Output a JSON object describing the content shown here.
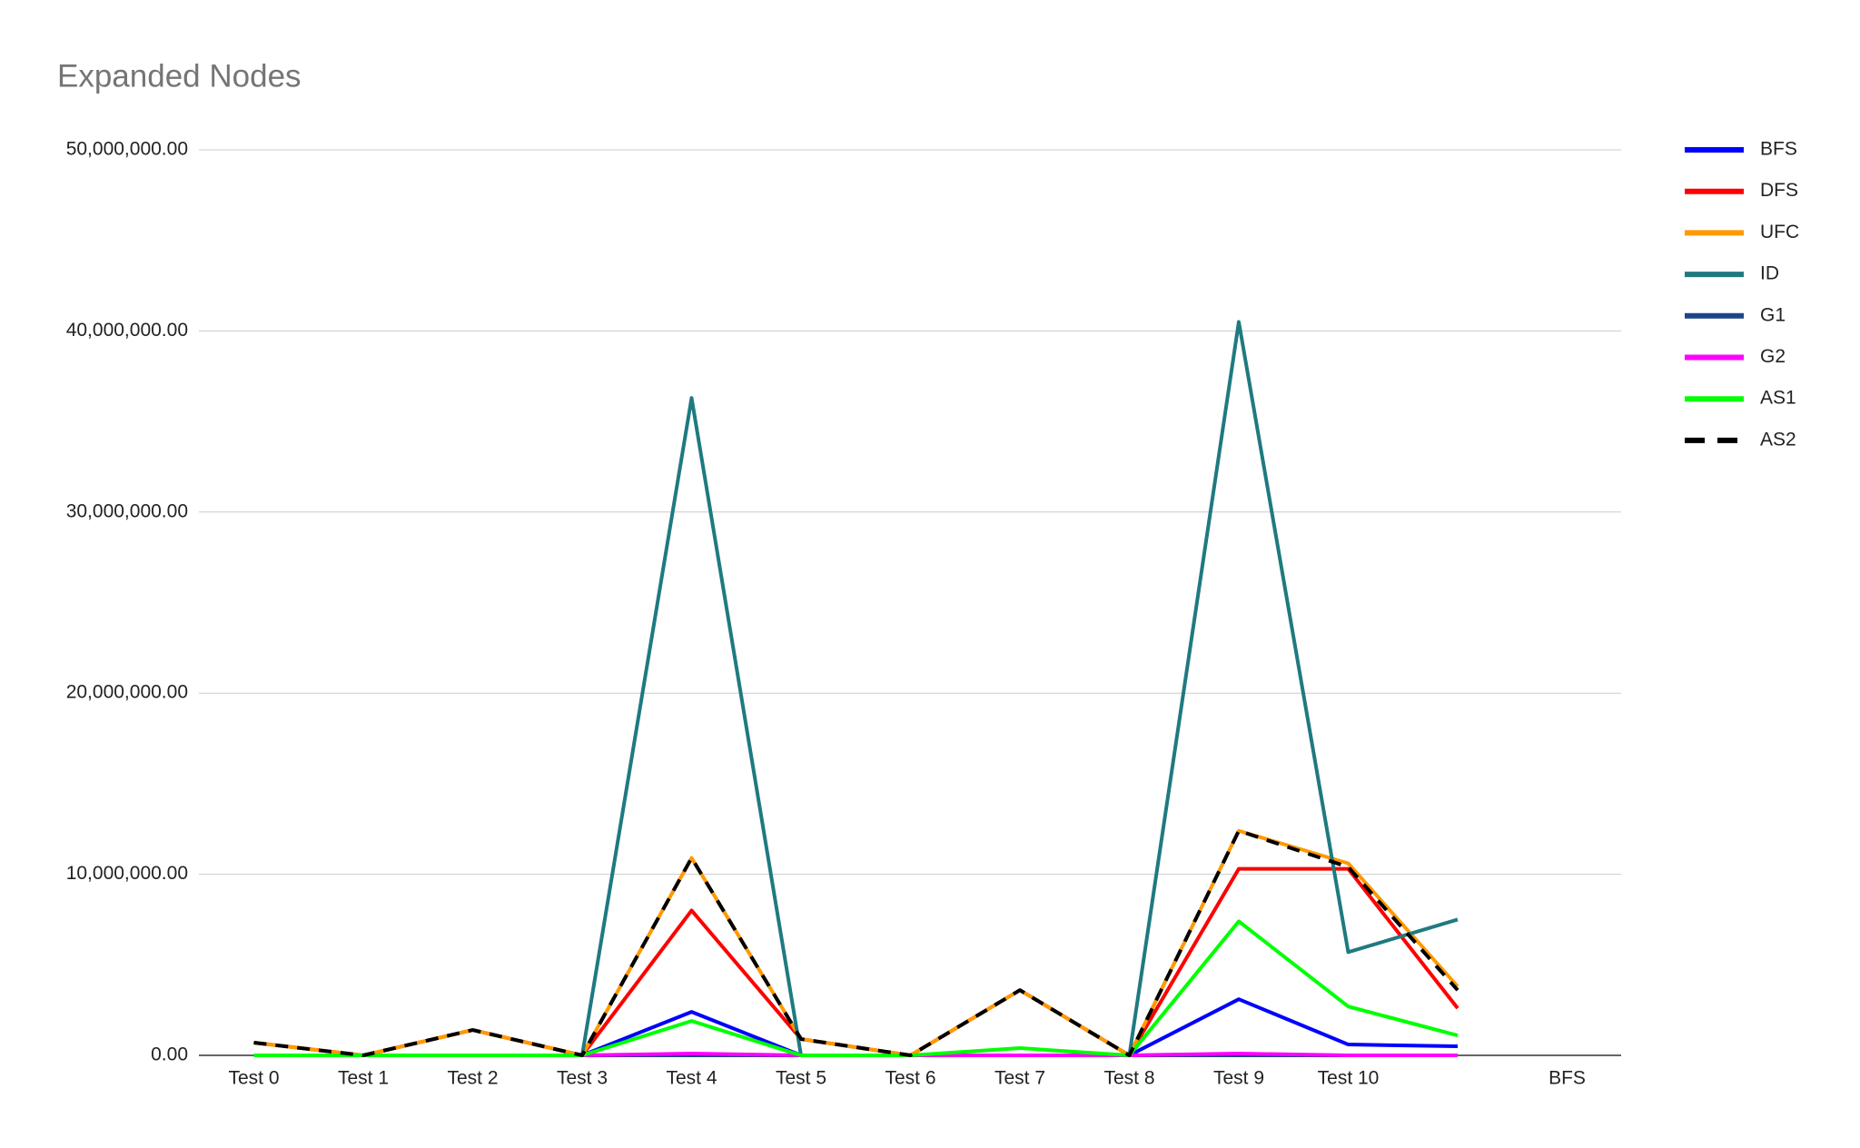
{
  "chart_data": {
    "type": "line",
    "title": "Expanded Nodes",
    "categories": [
      "Test 0",
      "Test 1",
      "Test 2",
      "Test 3",
      "Test 4",
      "Test 5",
      "Test 6",
      "Test 7",
      "Test 8",
      "Test 9",
      "Test 10",
      null,
      "BFS"
    ],
    "series": [
      {
        "name": "BFS",
        "color": "#0000ff",
        "values": [
          0,
          0,
          0,
          0,
          2400000,
          0,
          0,
          0,
          0,
          3100000,
          600000,
          500000,
          null
        ]
      },
      {
        "name": "DFS",
        "color": "#ff0000",
        "values": [
          700000,
          0,
          1400000,
          0,
          8000000,
          900000,
          0,
          3600000,
          0,
          10300000,
          10300000,
          2600000,
          null
        ]
      },
      {
        "name": "UFC",
        "color": "#ff9900",
        "values": [
          700000,
          0,
          1400000,
          0,
          10900000,
          900000,
          0,
          3600000,
          0,
          12400000,
          10600000,
          3800000,
          null
        ]
      },
      {
        "name": "ID",
        "color": "#1f7a80",
        "values": [
          0,
          0,
          0,
          0,
          36300000,
          0,
          0,
          0,
          0,
          40500000,
          5700000,
          7500000,
          null
        ]
      },
      {
        "name": "G1",
        "color": "#1c4587",
        "values": [
          0,
          0,
          0,
          0,
          0,
          0,
          0,
          0,
          0,
          0,
          0,
          0,
          null
        ]
      },
      {
        "name": "G2",
        "color": "#ff00ff",
        "values": [
          0,
          0,
          0,
          0,
          100000,
          0,
          0,
          0,
          0,
          100000,
          0,
          0,
          null
        ]
      },
      {
        "name": "AS1",
        "color": "#00ff00",
        "values": [
          0,
          0,
          0,
          0,
          1900000,
          0,
          0,
          400000,
          0,
          7400000,
          2700000,
          1100000,
          null
        ]
      },
      {
        "name": "AS2",
        "color": "#000000",
        "line_style": "dashed",
        "values": [
          700000,
          0,
          1400000,
          0,
          10900000,
          900000,
          0,
          3600000,
          0,
          12400000,
          10400000,
          3600000,
          null
        ]
      }
    ],
    "ylim": [
      0,
      50000000
    ],
    "yticks": [
      {
        "value": 0,
        "label": "0.00"
      },
      {
        "value": 10000000,
        "label": "10,000,000.00"
      },
      {
        "value": 20000000,
        "label": "20,000,000.00"
      },
      {
        "value": 30000000,
        "label": "30,000,000.00"
      },
      {
        "value": 40000000,
        "label": "40,000,000.00"
      },
      {
        "value": 50000000,
        "label": "50,000,000.00"
      }
    ],
    "grid": true,
    "legend": "right"
  }
}
